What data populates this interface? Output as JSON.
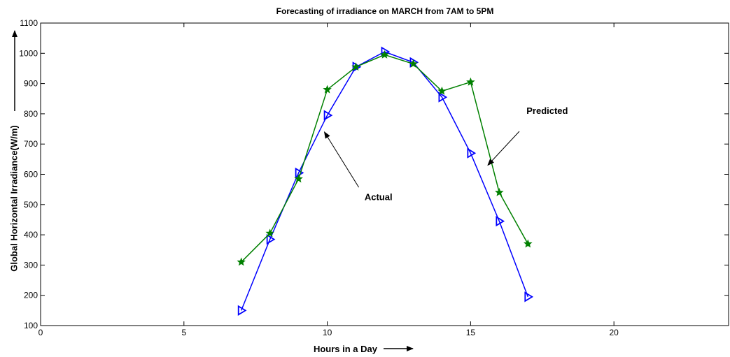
{
  "chart_data": {
    "type": "line",
    "title": "Forecasting of irradiance on MARCH from 7AM to 5PM",
    "xlabel": "Hours in a Day",
    "ylabel": "Global Horizontal Irradiance(W/m)",
    "xlim": [
      0,
      24
    ],
    "ylim": [
      100,
      1100
    ],
    "xticks": [
      0,
      5,
      10,
      15,
      20
    ],
    "yticks": [
      100,
      200,
      300,
      400,
      500,
      600,
      700,
      800,
      900,
      1000,
      1100
    ],
    "grid": false,
    "series": [
      {
        "key": "actual",
        "color": "#0000ff",
        "marker": "triangle-right",
        "x": [
          7,
          8,
          9,
          10,
          11,
          12,
          13,
          14,
          15,
          16,
          17
        ],
        "y": [
          150,
          385,
          605,
          795,
          955,
          1005,
          970,
          855,
          670,
          445,
          195
        ]
      },
      {
        "key": "predicted",
        "color": "#008000",
        "marker": "star",
        "x": [
          7,
          8,
          9,
          10,
          11,
          12,
          13,
          14,
          15,
          16,
          17
        ],
        "y": [
          310,
          405,
          585,
          880,
          955,
          995,
          965,
          875,
          905,
          540,
          370
        ]
      }
    ],
    "annotations": [
      {
        "key": "predicted",
        "text": "Predicted",
        "text_at": [
          16.95,
          800
        ],
        "arrow_from": [
          16.7,
          742
        ],
        "arrow_to": [
          15.6,
          630
        ]
      },
      {
        "key": "actual",
        "text": "Actual",
        "text_at": [
          11.3,
          515
        ],
        "arrow_from": [
          11.1,
          557
        ],
        "arrow_to": [
          9.9,
          740
        ]
      }
    ]
  }
}
